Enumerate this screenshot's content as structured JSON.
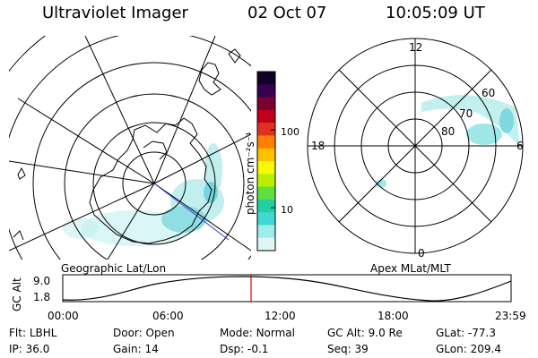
{
  "header": {
    "instrument": "Ultraviolet Imager",
    "date": "02 Oct 07",
    "time": "10:05:09 UT"
  },
  "left_map": {
    "caption": "Geographic Lat/Lon"
  },
  "right_map": {
    "caption": "Apex MLat/MLT",
    "mlt_labels": {
      "top": "12",
      "left": "18",
      "right": "6",
      "bottom": "0"
    },
    "lat_labels": [
      "60",
      "70",
      "80"
    ]
  },
  "colorbar": {
    "unit_label": "photon cm⁻²s⁻¹",
    "ticks": [
      "100",
      "10"
    ],
    "colors": [
      "#0d0029",
      "#3a0050",
      "#7a0030",
      "#c0001a",
      "#e03020",
      "#ff7f00",
      "#ffc000",
      "#f8f800",
      "#b8f000",
      "#60e040",
      "#20d0a0",
      "#40d8d0",
      "#a0ecec",
      "#dff6f6"
    ]
  },
  "altitude_plot": {
    "ylabel": "GC Alt",
    "yticks": [
      "9.0",
      "1.8"
    ],
    "xticks": [
      "00:00",
      "06:00",
      "12:00",
      "18:00",
      "23:59"
    ],
    "current_time_fraction": 0.42,
    "marker_color": "#e00000"
  },
  "status": {
    "row1": [
      {
        "key": "Flt:",
        "value": "LBHL"
      },
      {
        "key": "Door:",
        "value": "Open"
      },
      {
        "key": "Mode:",
        "value": "Normal"
      },
      {
        "key": "GC Alt:",
        "value": "9.0 Re"
      },
      {
        "key": "GLat:",
        "value": "-77.3"
      }
    ],
    "row2": [
      {
        "key": "IP:",
        "value": "36.0"
      },
      {
        "key": "Gain:",
        "value": "14"
      },
      {
        "key": "Dsp:",
        "value": "-0.1"
      },
      {
        "key": "Seq:",
        "value": "39"
      },
      {
        "key": "GLon:",
        "value": "209.4"
      }
    ]
  }
}
